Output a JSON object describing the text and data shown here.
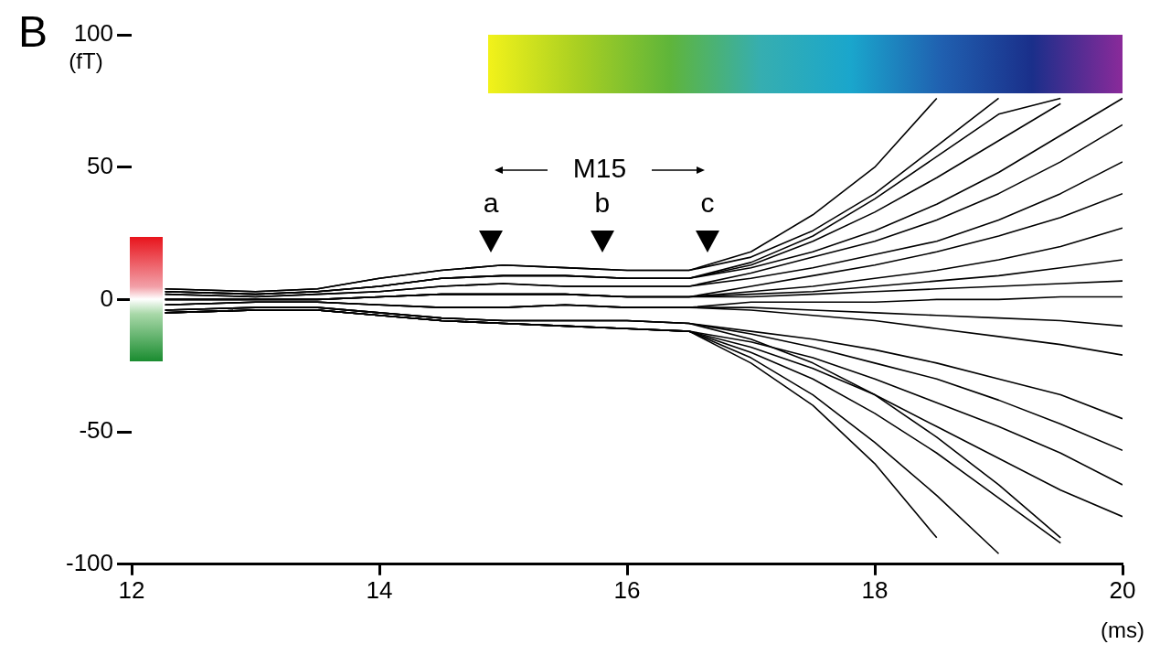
{
  "chart_data": {
    "type": "line",
    "xlabel": "(ms)",
    "ylabel": "(fT)",
    "annotations": [
      "B",
      "M15",
      {
        "text": "a",
        "x": 14.9,
        "y": 22
      },
      {
        "text": "b",
        "x": 15.8,
        "y": 22
      },
      {
        "text": "c",
        "x": 16.65,
        "y": 22
      }
    ],
    "x": [
      12.27,
      13,
      13.5,
      14,
      14.5,
      15,
      15.5,
      16,
      16.5,
      17,
      17.5,
      18,
      18.5,
      19,
      19.5,
      20
    ],
    "xlim": [
      12,
      20
    ],
    "xticks": [
      12,
      14,
      16,
      18,
      20
    ],
    "ylim": [
      -100,
      100
    ],
    "yticks": [
      -100,
      -50,
      0,
      50,
      100
    ],
    "grid": false,
    "legend": false,
    "marker": "none",
    "line_style": "solid",
    "series": [
      {
        "color": "#000000",
        "values": [
          4,
          3,
          4,
          8,
          11,
          13,
          12,
          11,
          11,
          16,
          26,
          40,
          58,
          76,
          null,
          null
        ]
      },
      {
        "color": "#000000",
        "values": [
          4,
          3,
          4,
          8,
          11,
          13,
          12,
          11,
          11,
          18,
          32,
          50,
          76,
          null,
          null,
          null
        ]
      },
      {
        "color": "#000000",
        "values": [
          3,
          2,
          3,
          5,
          8,
          9,
          9,
          8,
          8,
          14,
          24,
          38,
          54,
          70,
          76,
          null
        ]
      },
      {
        "color": "#000000",
        "values": [
          3,
          2,
          3,
          5,
          8,
          9,
          9,
          8,
          8,
          12,
          18,
          26,
          36,
          48,
          62,
          76
        ]
      },
      {
        "color": "#000000",
        "values": [
          3,
          2,
          3,
          5,
          8,
          9,
          9,
          8,
          8,
          13,
          22,
          33,
          46,
          60,
          74,
          null
        ]
      },
      {
        "color": "#000000",
        "values": [
          2,
          1,
          2,
          3,
          5,
          6,
          5,
          5,
          5,
          10,
          16,
          22,
          30,
          40,
          52,
          66
        ]
      },
      {
        "color": "#000000",
        "values": [
          2,
          1,
          2,
          3,
          5,
          6,
          5,
          5,
          5,
          8,
          12,
          17,
          22,
          30,
          40,
          52
        ]
      },
      {
        "color": "#000000",
        "values": [
          0,
          0,
          0,
          1,
          2,
          2,
          2,
          1,
          1,
          5,
          9,
          13,
          18,
          24,
          31,
          40
        ]
      },
      {
        "color": "#000000",
        "values": [
          0,
          0,
          0,
          1,
          2,
          2,
          2,
          1,
          1,
          3,
          5,
          8,
          11,
          15,
          20,
          27
        ]
      },
      {
        "color": "#000000",
        "values": [
          0,
          0,
          0,
          1,
          2,
          2,
          2,
          1,
          1,
          2,
          3,
          5,
          7,
          9,
          12,
          15
        ]
      },
      {
        "color": "#000000",
        "values": [
          0,
          0,
          0,
          1,
          2,
          2,
          2,
          1,
          1,
          1,
          2,
          3,
          4,
          5,
          6,
          7
        ]
      },
      {
        "color": "#000000",
        "values": [
          -2,
          -1,
          -1,
          -2,
          -3,
          -3,
          -2,
          -3,
          -3,
          -1,
          -1,
          -1,
          0,
          0,
          1,
          1
        ]
      },
      {
        "color": "#000000",
        "values": [
          -2,
          -1,
          -1,
          -2,
          -3,
          -3,
          -2,
          -3,
          -3,
          -3,
          -4,
          -5,
          -6,
          -7,
          -8,
          -10
        ]
      },
      {
        "color": "#000000",
        "values": [
          -2,
          -1,
          -1,
          -2,
          -3,
          -3,
          -2,
          -3,
          -3,
          -4,
          -6,
          -8,
          -11,
          -14,
          -17,
          -21
        ]
      },
      {
        "color": "#000000",
        "values": [
          -4,
          -3,
          -3,
          -5,
          -7,
          -8,
          -8,
          -8,
          -9,
          -12,
          -15,
          -19,
          -24,
          -30,
          -36,
          -45
        ]
      },
      {
        "color": "#000000",
        "values": [
          -4,
          -3,
          -3,
          -5,
          -7,
          -8,
          -8,
          -8,
          -9,
          -13,
          -18,
          -24,
          -30,
          -38,
          -47,
          -57
        ]
      },
      {
        "color": "#000000",
        "values": [
          -4,
          -3,
          -3,
          -5,
          -7,
          -8,
          -8,
          -8,
          -9,
          -15,
          -24,
          -36,
          -52,
          -70,
          -90,
          null
        ]
      },
      {
        "color": "#000000",
        "values": [
          -5,
          -4,
          -4,
          -6,
          -8,
          -9,
          -10,
          -11,
          -12,
          -16,
          -22,
          -30,
          -39,
          -48,
          -58,
          -70
        ]
      },
      {
        "color": "#000000",
        "values": [
          -5,
          -4,
          -4,
          -6,
          -8,
          -9,
          -10,
          -11,
          -12,
          -18,
          -26,
          -36,
          -48,
          -60,
          -72,
          -82
        ]
      },
      {
        "color": "#000000",
        "values": [
          -5,
          -4,
          -4,
          -6,
          -8,
          -9,
          -10,
          -11,
          -12,
          -20,
          -30,
          -43,
          -58,
          -75,
          -92,
          null
        ]
      },
      {
        "color": "#000000",
        "values": [
          -5,
          -4,
          -4,
          -6,
          -8,
          -9,
          -10,
          -11,
          -12,
          -22,
          -36,
          -54,
          -74,
          -96,
          null,
          null
        ]
      },
      {
        "color": "#000000",
        "values": [
          -5,
          -4,
          -4,
          -6,
          -8,
          -9,
          -10,
          -11,
          -12,
          -24,
          -40,
          -62,
          -90,
          null,
          null,
          null
        ]
      }
    ]
  }
}
